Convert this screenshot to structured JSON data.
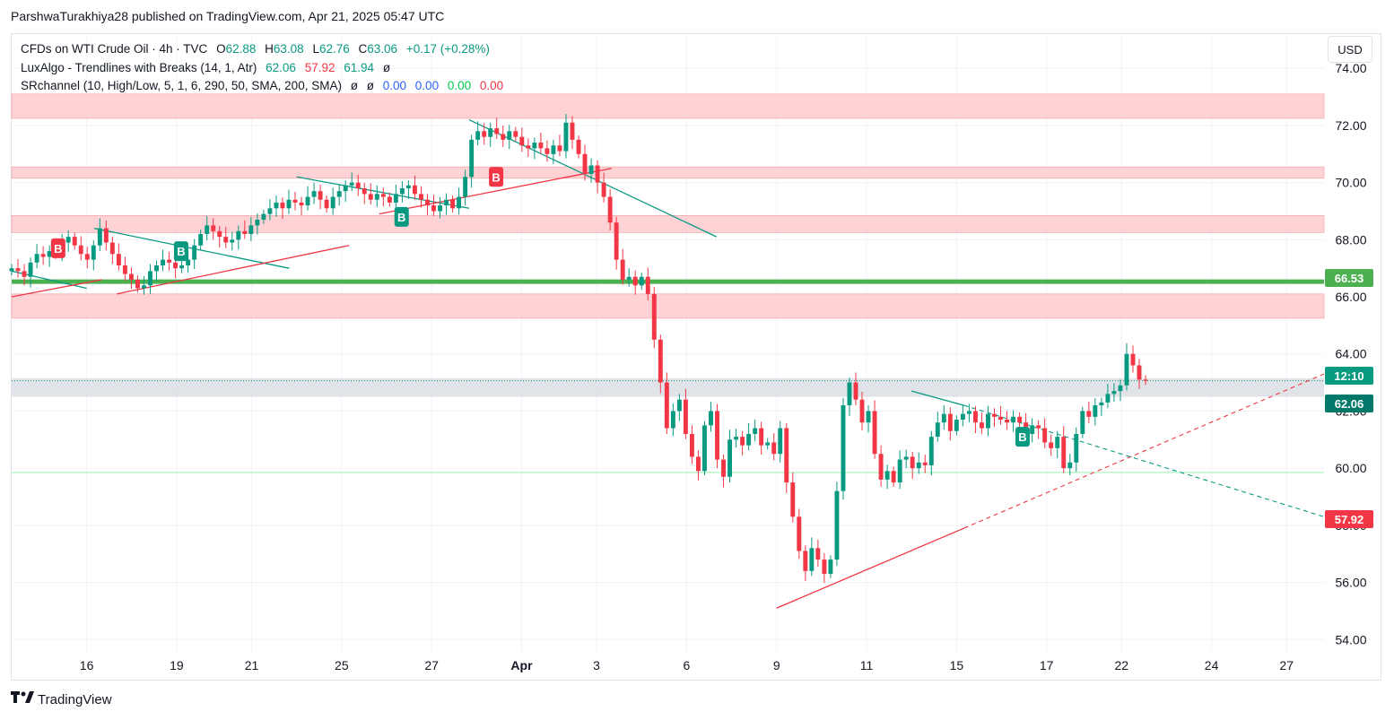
{
  "header": {
    "published": "ParshwaTurakhiya28 published on TradingView.com, Apr 21, 2025 05:47 UTC"
  },
  "legend": {
    "symbol": "CFDs on WTI Crude Oil · 4h · TVC",
    "ohlc": {
      "o_label": "O",
      "o": "62.88",
      "h_label": "H",
      "h": "63.08",
      "l_label": "L",
      "l": "62.76",
      "c_label": "C",
      "c": "63.06",
      "change": "+0.17 (+0.28%)"
    },
    "indicator1": {
      "name": "LuxAlgo - Trendlines with Breaks (14, 1, Atr)",
      "v1": "62.06",
      "v2": "57.92",
      "v3": "61.94",
      "v4": "ø"
    },
    "indicator2": {
      "name": "SRchannel (10, High/Low, 5, 1, 6, 290, 50, SMA, 200, SMA)",
      "v1": "ø",
      "v2": "ø",
      "v3": "0.00",
      "v4": "0.00",
      "v5": "0.00",
      "v6": "0.00"
    }
  },
  "currency_button": "USD",
  "price_tags": {
    "green_level": "66.53",
    "countdown": "12:10",
    "upper_trend": "62.06",
    "lower_trend": "57.92"
  },
  "colors": {
    "up": "#089981",
    "down": "#f23645",
    "sr_zone": "#ffcdd2",
    "green_line": "#4caf50",
    "trend_up": "#f23645",
    "trend_down": "#089981"
  },
  "brand": {
    "name": "TradingView",
    "logo_icon": "tradingview-logo-icon"
  },
  "chart_data": {
    "type": "candlestick",
    "timeframe": "4h",
    "y_ticks": [
      "54.00",
      "56.00",
      "58.00",
      "60.00",
      "62.00",
      "64.00",
      "66.00",
      "68.00",
      "70.00",
      "72.00",
      "74.00"
    ],
    "ylim": [
      53.6,
      75.2
    ],
    "x_ticks": [
      {
        "label": "16",
        "t": 5
      },
      {
        "label": "19",
        "t": 11
      },
      {
        "label": "21",
        "t": 16
      },
      {
        "label": "25",
        "t": 22
      },
      {
        "label": "27",
        "t": 28
      },
      {
        "label": "Apr",
        "t": 34
      },
      {
        "label": "3",
        "t": 39
      },
      {
        "label": "6",
        "t": 45
      },
      {
        "label": "9",
        "t": 51
      },
      {
        "label": "11",
        "t": 57
      },
      {
        "label": "15",
        "t": 63
      },
      {
        "label": "17",
        "t": 69
      },
      {
        "label": "22",
        "t": 74
      },
      {
        "label": "24",
        "t": 80
      },
      {
        "label": "27",
        "t": 85
      }
    ],
    "xlim": [
      0,
      87.5
    ],
    "candles_start_t": 0,
    "candles_step": 0.42,
    "closes": [
      67,
      66.9,
      66.7,
      67.2,
      67.5,
      67.4,
      67.6,
      67.5,
      67.9,
      68.1,
      67.8,
      67.5,
      67.3,
      67.8,
      68.4,
      67.9,
      67.5,
      67.1,
      66.8,
      66.6,
      66.3,
      66.4,
      66.9,
      67.1,
      67.3,
      67.2,
      67,
      67.1,
      67.3,
      67.8,
      68.2,
      68.5,
      68.3,
      68.1,
      67.9,
      68,
      68.3,
      68.2,
      68.5,
      68.7,
      68.9,
      69.1,
      69.3,
      69.1,
      69.4,
      69.3,
      69.2,
      69.5,
      69.7,
      69.4,
      69.1,
      69.5,
      69.7,
      69.9,
      70,
      69.8,
      69.6,
      69.4,
      69.6,
      69.5,
      69.3,
      69.6,
      69.8,
      69.9,
      69.6,
      69.4,
      69.2,
      69,
      69.2,
      69.4,
      69.1,
      69.5,
      70.2,
      71.5,
      71.8,
      71.6,
      71.9,
      71.7,
      71.5,
      71.8,
      71.6,
      71.3,
      71.2,
      71.4,
      71.2,
      71,
      71.3,
      71.1,
      72.1,
      71.5,
      71,
      70.3,
      70.6,
      70,
      69.5,
      68.6,
      67.3,
      66.6,
      66.7,
      66.4,
      66.7,
      66.1,
      64.5,
      63,
      61.4,
      62,
      62.4,
      61.2,
      60.4,
      59.9,
      61.5,
      62,
      60.3,
      59.7,
      61,
      61.1,
      60.8,
      61.2,
      61.4,
      60.8,
      60.9,
      60.5,
      61.4,
      59.5,
      58.3,
      57.1,
      56.4,
      57.2,
      56.8,
      56.3,
      56.8,
      59.2,
      62.2,
      63,
      62.4,
      61.6,
      62,
      60.5,
      59.6,
      59.9,
      59.5,
      60.3,
      60.4,
      60,
      60.2,
      60.1,
      61.1,
      61.6,
      61.9,
      61.3,
      61.7,
      61.9,
      62,
      61.6,
      61.4,
      61.9,
      61.8,
      61.7,
      61.6,
      61.8,
      61.6,
      61.2,
      61.5,
      61.4,
      60.9,
      60.7,
      61.1,
      60,
      60.2,
      61.2,
      62,
      61.8,
      62.2,
      62.3,
      62.6,
      62.7,
      62.9,
      64,
      63.6,
      63.1,
      63.06
    ]
  }
}
